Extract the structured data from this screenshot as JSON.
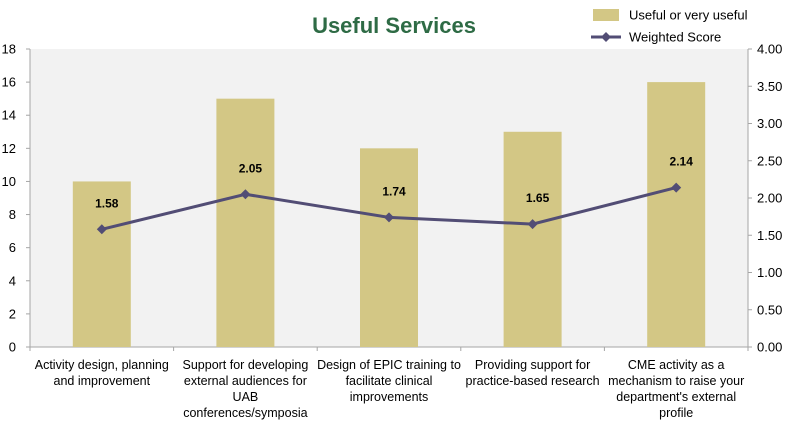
{
  "chart_data": {
    "type": "bar+line",
    "title": "Useful Services",
    "categories": [
      [
        "Activity design, planning",
        "and improvement"
      ],
      [
        "Support for developing",
        "external audiences for",
        "UAB",
        "conferences/symposia"
      ],
      [
        "Design of EPIC training to",
        "facilitate clinical",
        "improvements"
      ],
      [
        "Providing support for",
        "practice-based research"
      ],
      [
        "CME activity as a",
        "mechanism to raise your",
        "department's external",
        "profile"
      ]
    ],
    "series": [
      {
        "name": "Useful or very useful",
        "type": "bar",
        "axis": "left",
        "values": [
          10,
          15,
          12,
          13,
          16
        ]
      },
      {
        "name": "Weighted Score",
        "type": "line",
        "axis": "right",
        "values": [
          1.58,
          2.05,
          1.74,
          1.65,
          2.14
        ],
        "labels": [
          "1.58",
          "2.05",
          "1.74",
          "1.65",
          "2.14"
        ]
      }
    ],
    "y_left": {
      "min": 0,
      "max": 18,
      "ticks": [
        "0",
        "2",
        "4",
        "6",
        "8",
        "10",
        "12",
        "14",
        "16",
        "18"
      ]
    },
    "y_right": {
      "min": 0,
      "max": 4,
      "ticks": [
        "0.00",
        "0.50",
        "1.00",
        "1.50",
        "2.00",
        "2.50",
        "3.00",
        "3.50",
        "4.00"
      ]
    },
    "legend_position": "top-right",
    "grid": false,
    "colors": {
      "bar": "#d3c785",
      "line": "#524d75",
      "title": "#2e6b45",
      "plot_bg": "#f2f2f2",
      "axis": "#a6a6a6"
    }
  }
}
